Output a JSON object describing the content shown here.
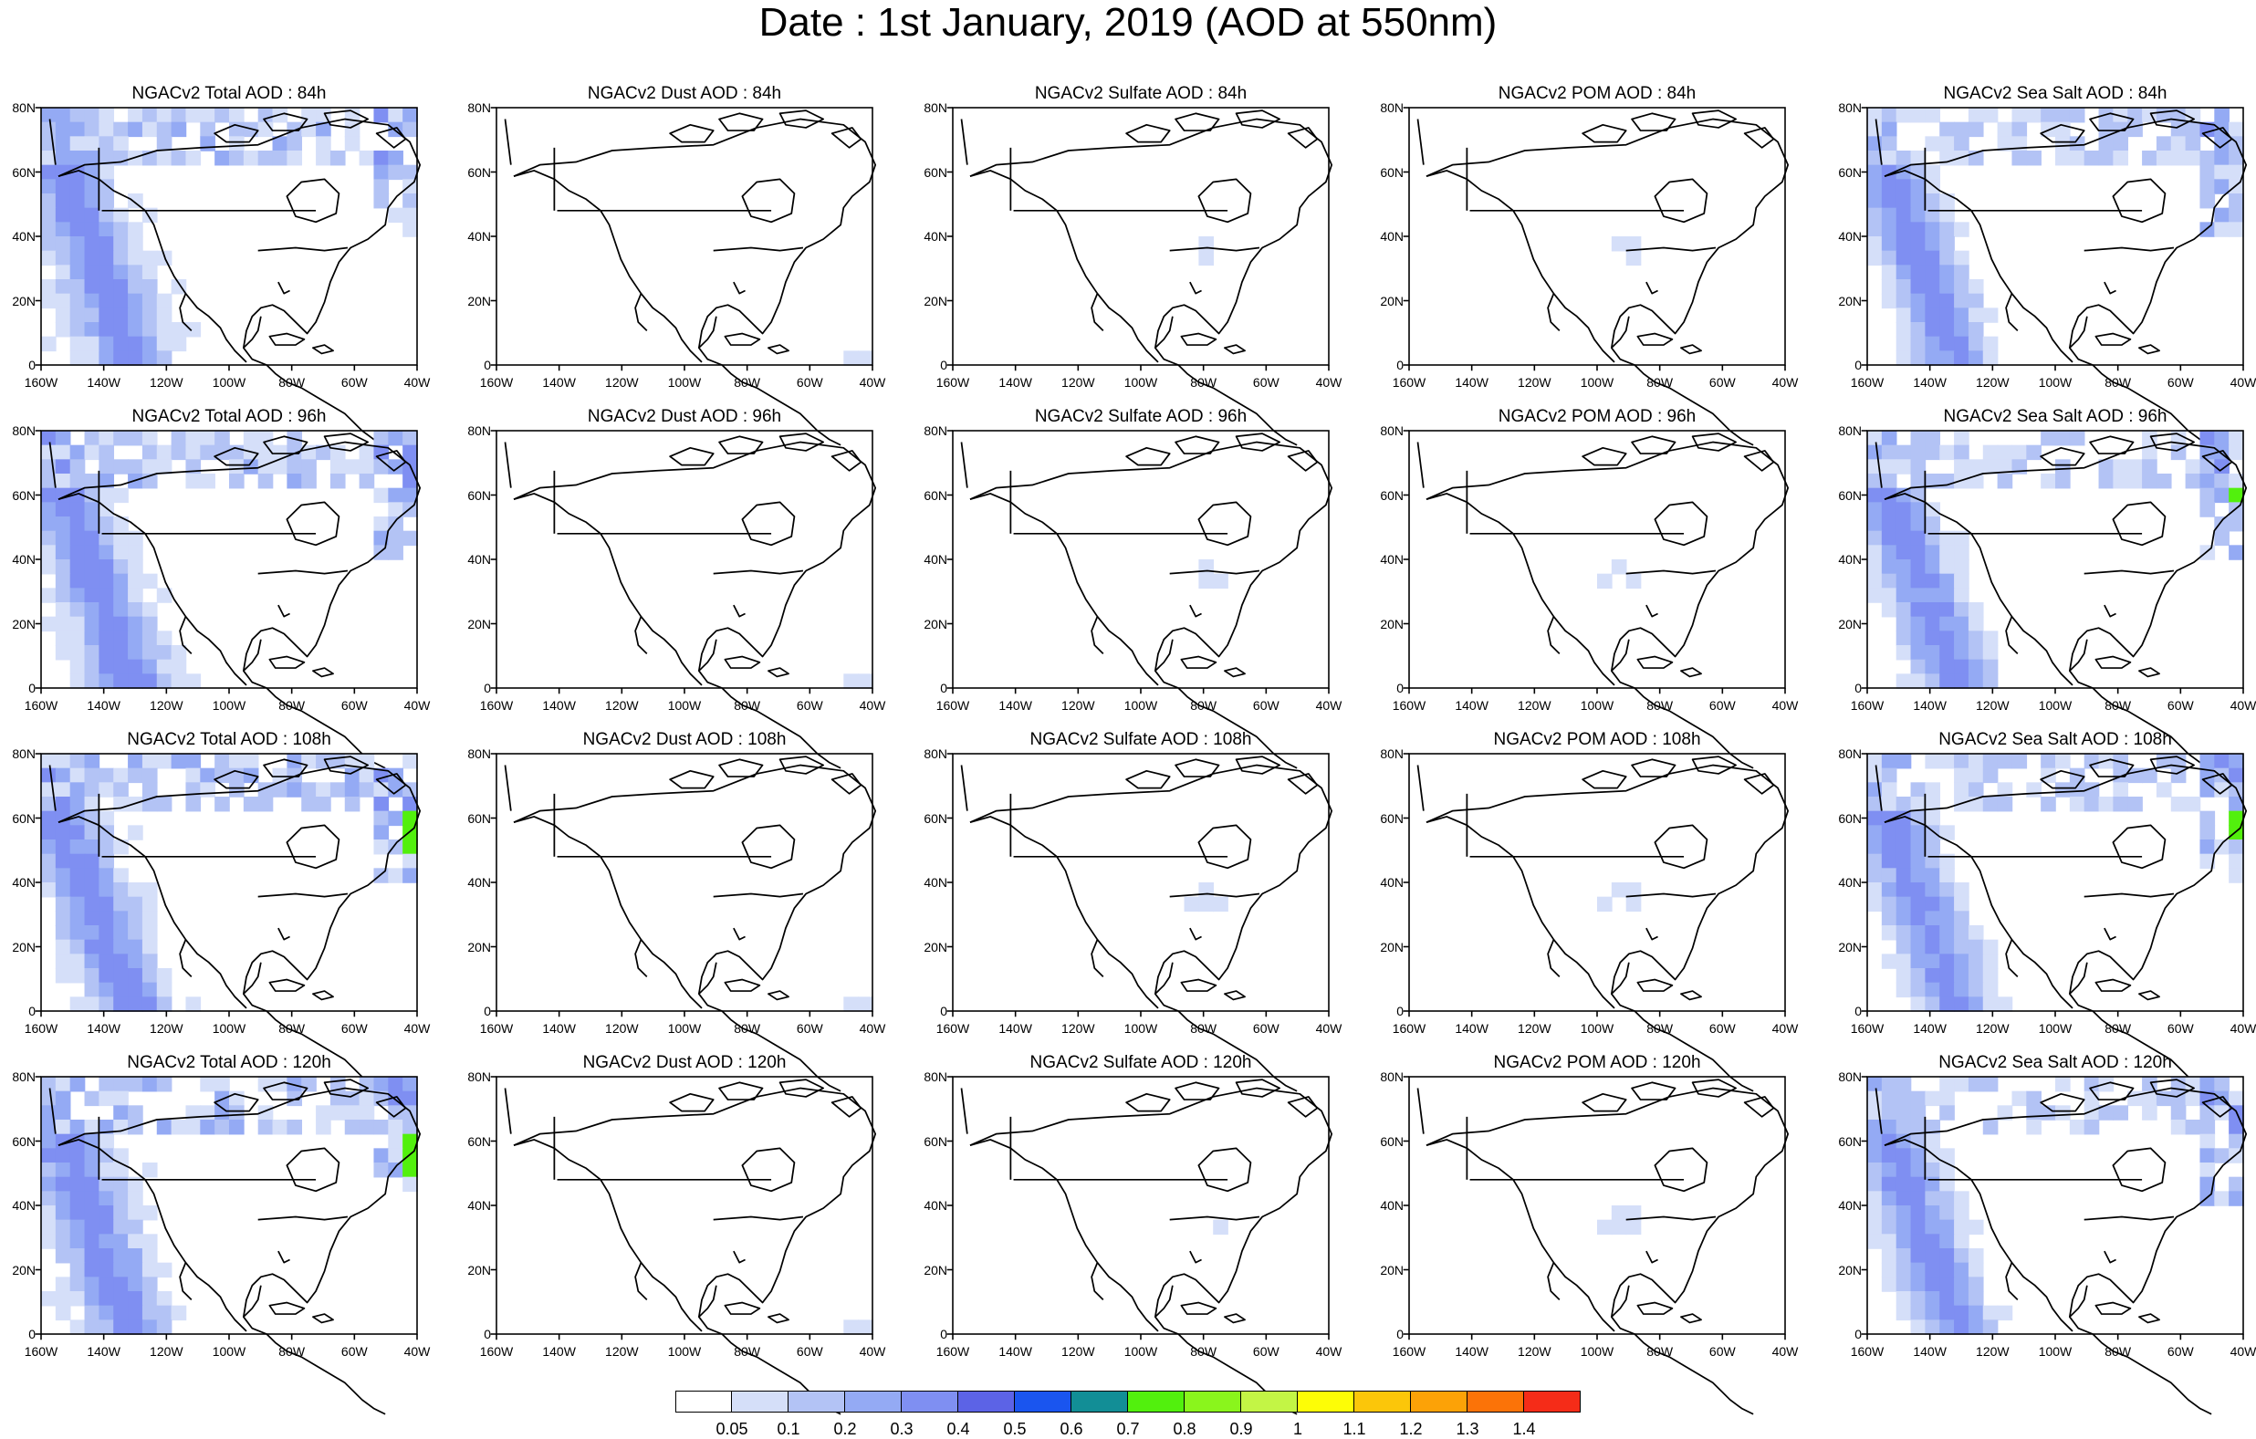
{
  "title": "Date : 1st January, 2019 (AOD at 550nm)",
  "panels": [
    {
      "title": "NGACv2 Total AOD : 84h",
      "species": "total",
      "hour": 84
    },
    {
      "title": "NGACv2 Dust AOD : 84h",
      "species": "dust",
      "hour": 84
    },
    {
      "title": "NGACv2 Sulfate AOD : 84h",
      "species": "sulfate",
      "hour": 84
    },
    {
      "title": "NGACv2 POM AOD : 84h",
      "species": "pom",
      "hour": 84
    },
    {
      "title": "NGACv2 Sea Salt AOD : 84h",
      "species": "seasalt",
      "hour": 84
    },
    {
      "title": "NGACv2 Total AOD : 96h",
      "species": "total",
      "hour": 96
    },
    {
      "title": "NGACv2 Dust AOD : 96h",
      "species": "dust",
      "hour": 96
    },
    {
      "title": "NGACv2 Sulfate AOD : 96h",
      "species": "sulfate",
      "hour": 96
    },
    {
      "title": "NGACv2 POM AOD : 96h",
      "species": "pom",
      "hour": 96
    },
    {
      "title": "NGACv2 Sea Salt AOD : 96h",
      "species": "seasalt",
      "hour": 96
    },
    {
      "title": "NGACv2 Total AOD : 108h",
      "species": "total",
      "hour": 108
    },
    {
      "title": "NGACv2 Dust AOD : 108h",
      "species": "dust",
      "hour": 108
    },
    {
      "title": "NGACv2 Sulfate AOD : 108h",
      "species": "sulfate",
      "hour": 108
    },
    {
      "title": "NGACv2 POM AOD : 108h",
      "species": "pom",
      "hour": 108
    },
    {
      "title": "NGACv2 Sea Salt AOD : 108h",
      "species": "seasalt",
      "hour": 108
    },
    {
      "title": "NGACv2 Total AOD : 120h",
      "species": "total",
      "hour": 120
    },
    {
      "title": "NGACv2 Dust AOD : 120h",
      "species": "dust",
      "hour": 120
    },
    {
      "title": "NGACv2 Sulfate AOD : 120h",
      "species": "sulfate",
      "hour": 120
    },
    {
      "title": "NGACv2 POM AOD : 120h",
      "species": "pom",
      "hour": 120
    },
    {
      "title": "NGACv2 Sea Salt  AOD : 120h",
      "species": "seasalt",
      "hour": 120
    }
  ],
  "lat_ticks": [
    "80N",
    "60N",
    "40N",
    "20N",
    "0"
  ],
  "lon_ticks": [
    "160W",
    "140W",
    "120W",
    "100W",
    "80W",
    "60W",
    "40W"
  ],
  "colorbar": {
    "labels": [
      "0.05",
      "0.1",
      "0.2",
      "0.3",
      "0.4",
      "0.5",
      "0.6",
      "0.7",
      "0.8",
      "0.9",
      "1",
      "1.1",
      "1.2",
      "1.3",
      "1.4"
    ],
    "colors": [
      "#ffffff",
      "#d5dff9",
      "#b3c3f5",
      "#94aaf4",
      "#7f8ff2",
      "#5c63e6",
      "#1a55ef",
      "#128e96",
      "#52f00d",
      "#8af51c",
      "#c3f545",
      "#fdfd06",
      "#fbc60a",
      "#fca207",
      "#fb7308",
      "#f52c18"
    ]
  }
}
